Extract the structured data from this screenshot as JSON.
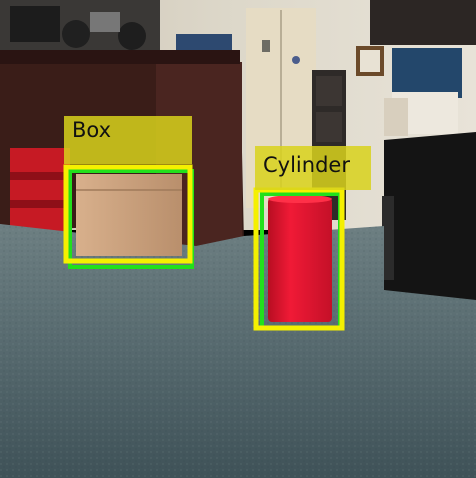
{
  "detections": [
    {
      "label": "Box",
      "box_color": "#f5f000",
      "gt_color": "#22e01c",
      "label_bg": "#d8d21c"
    },
    {
      "label": "Cylinder",
      "box_color": "#f5f000",
      "gt_color": "#22e01c",
      "label_bg": "#d8d21c"
    }
  ],
  "scene": {
    "floor_color": "#51646a",
    "wall_color": "#d7d1c3",
    "cabinet_color": "#3a1d18",
    "cylinder_color": "#e0142c",
    "box_color": "#c49c78"
  }
}
